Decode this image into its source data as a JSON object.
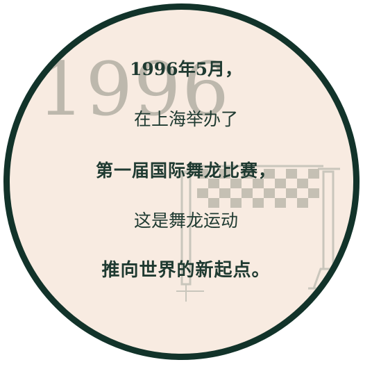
{
  "background_year": "1996",
  "lines": [
    "1996年5月，",
    "在上海举办了",
    "第一届国际舞龙比赛，",
    "这是舞龙运动",
    "推向世界的新起点。"
  ],
  "icons": {
    "flag": "checkered-flag-icon"
  },
  "colors": {
    "circle_fill": "#f8ebe1",
    "circle_border": "#12332a",
    "text": "#1f3a31",
    "watermark": "#bdb8ad"
  }
}
